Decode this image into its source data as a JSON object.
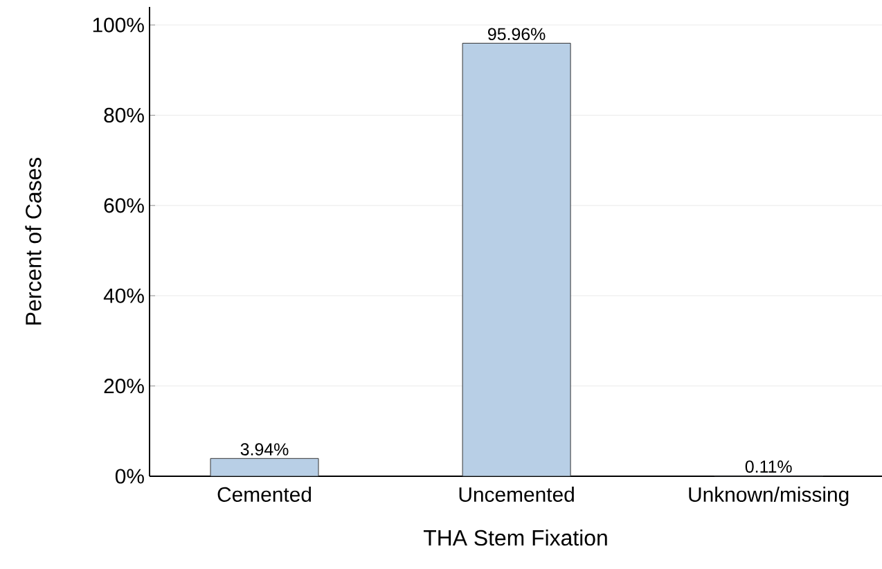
{
  "chart_data": {
    "type": "bar",
    "xlabel": "THA Stem Fixation",
    "ylabel": "Percent of Cases",
    "categories": [
      "Cemented",
      "Uncemented",
      "Unknown/missing"
    ],
    "values": [
      3.94,
      95.96,
      0.11
    ],
    "value_labels": [
      "3.94%",
      "95.96%",
      "0.11%"
    ],
    "color": "#b8cfe6",
    "ylim": [
      0,
      104
    ],
    "yticks": [
      {
        "value": 0,
        "label": "0%"
      },
      {
        "value": 20,
        "label": "20%"
      },
      {
        "value": 40,
        "label": "40%"
      },
      {
        "value": 60,
        "label": "60%"
      },
      {
        "value": 80,
        "label": "80%"
      },
      {
        "value": 100,
        "label": "100%"
      }
    ],
    "grid": "y"
  }
}
